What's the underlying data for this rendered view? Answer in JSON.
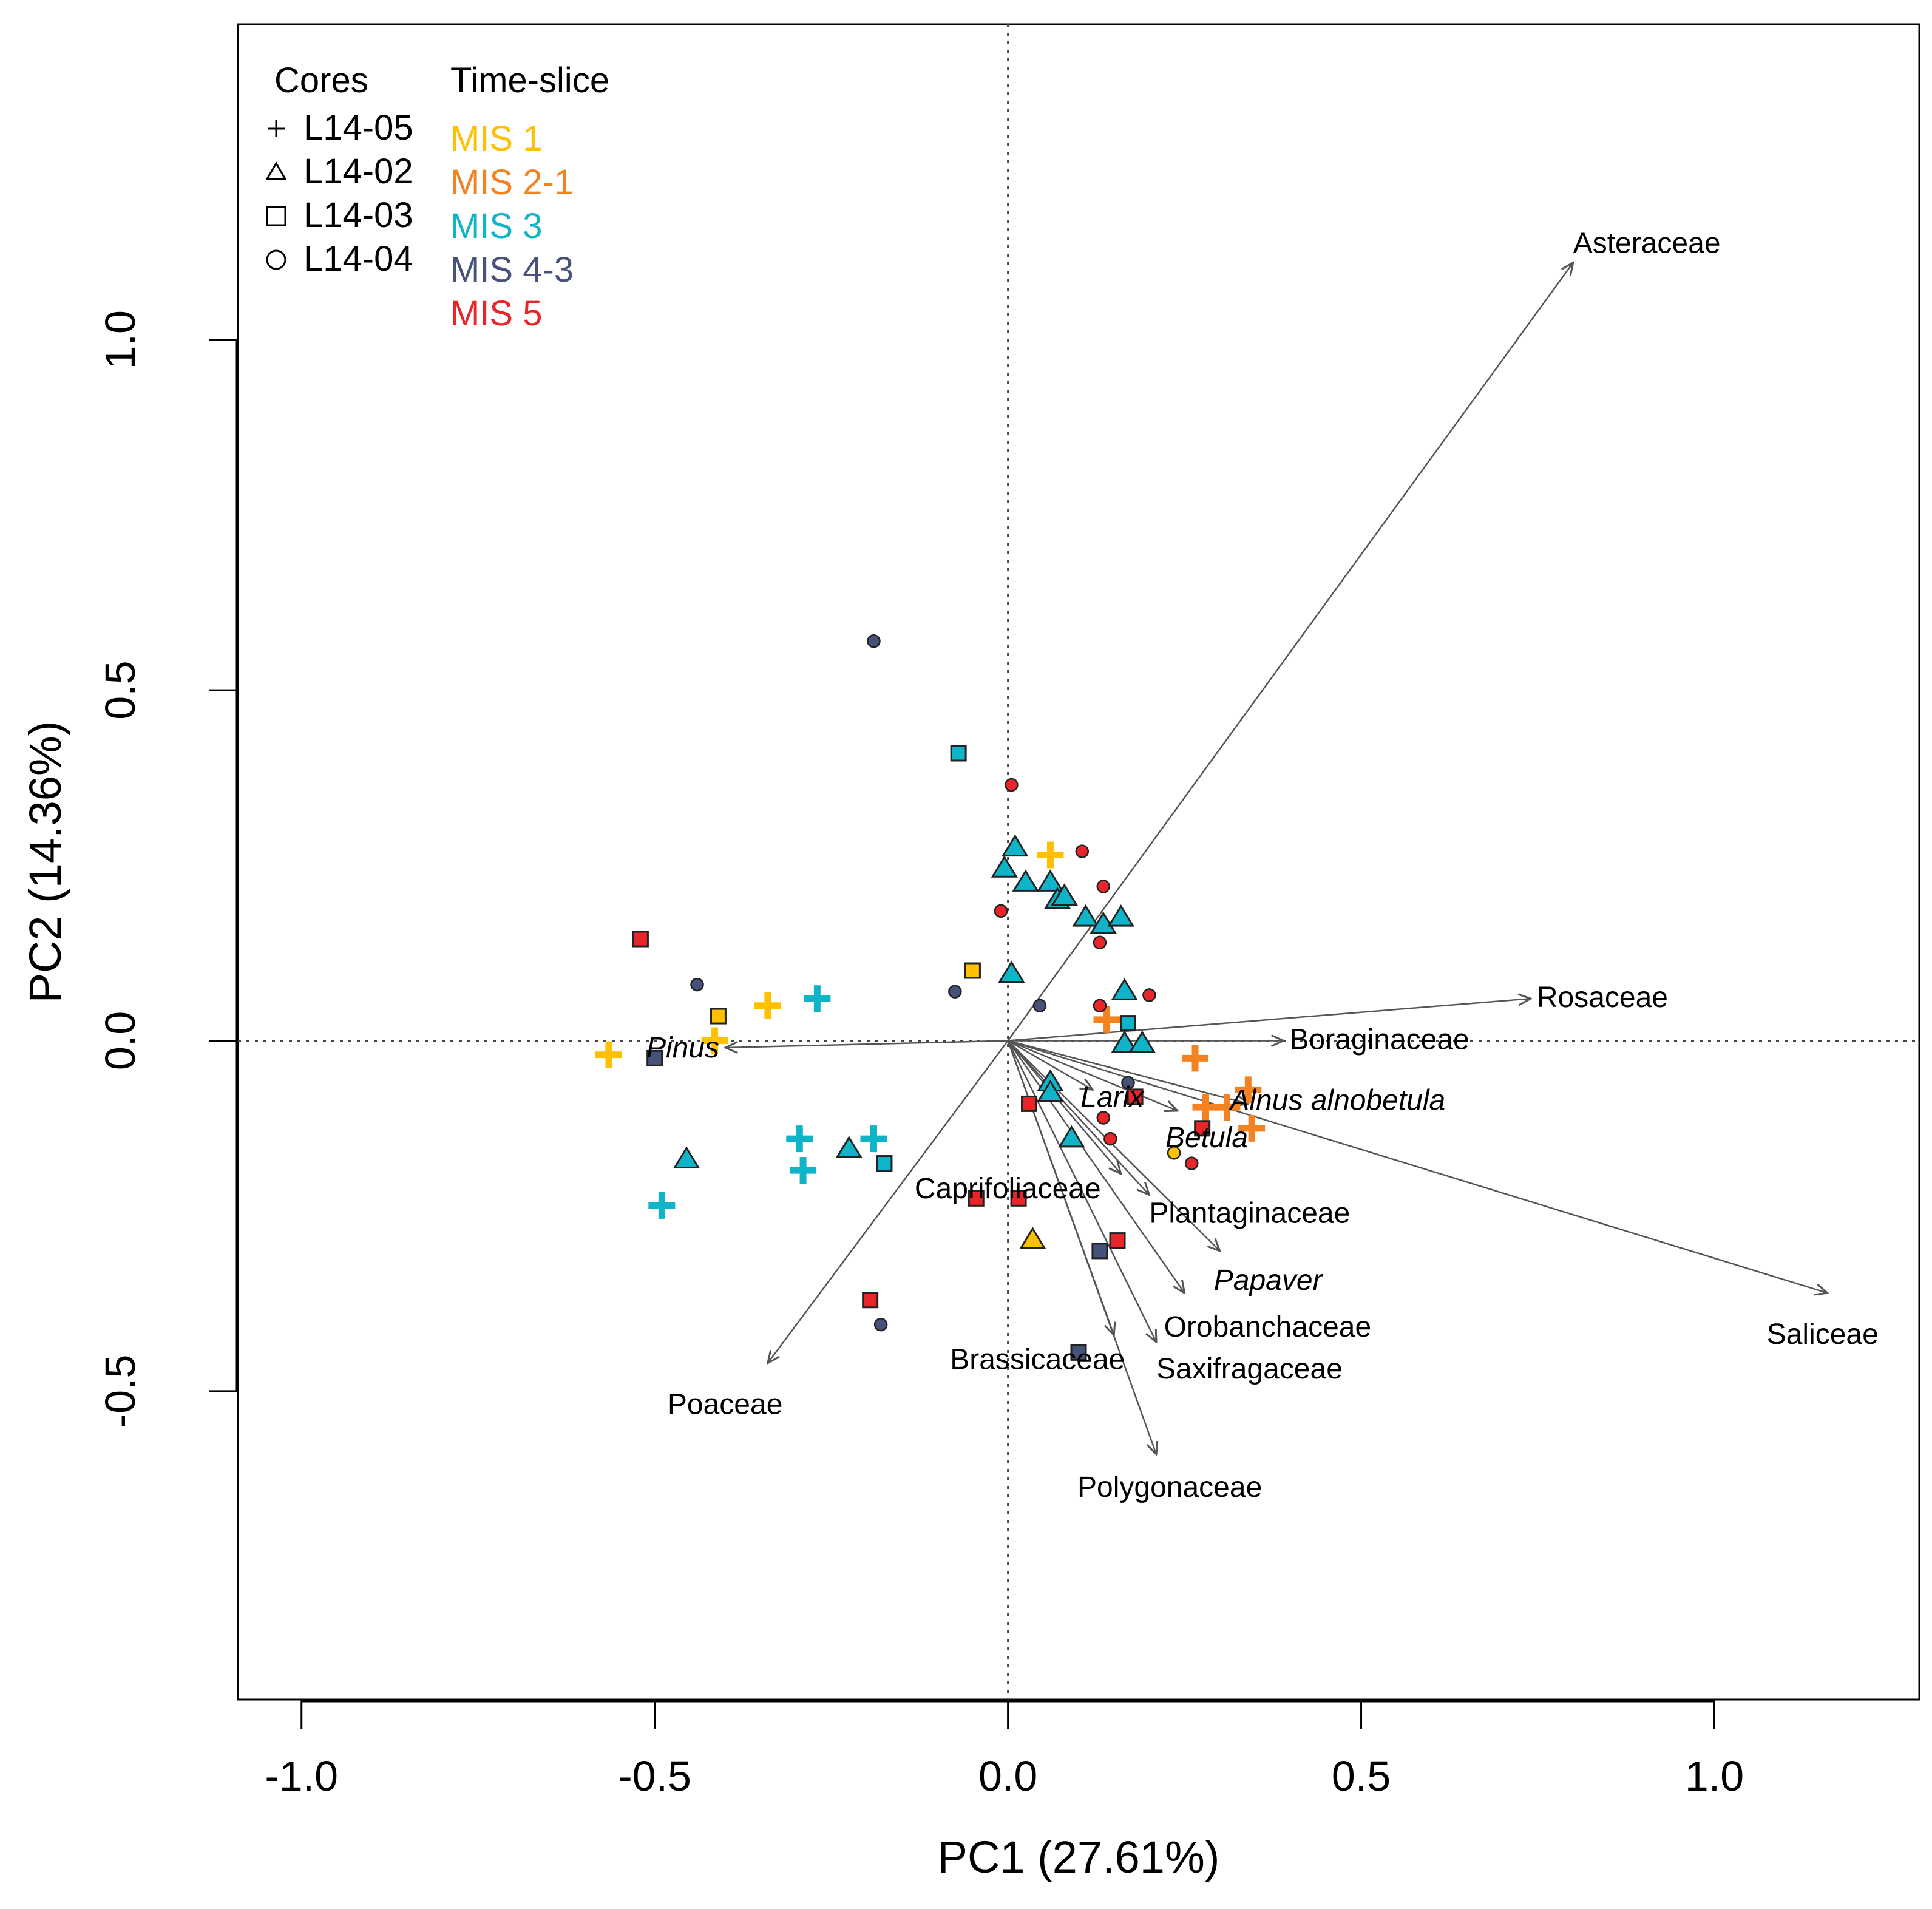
{
  "chart_data": {
    "type": "scatter",
    "subtype": "pca-biplot",
    "xlabel": "PC1 (27.61%)",
    "ylabel": "PC2 (14.36%)",
    "xlim": [
      -1.09,
      1.29
    ],
    "ylim": [
      -0.94,
      1.45
    ],
    "xticks": [
      -1.0,
      -0.5,
      0.0,
      0.5,
      1.0
    ],
    "yticks": [
      -0.5,
      0.0,
      0.5,
      1.0
    ],
    "xtick_labels": [
      "-1.0",
      "-0.5",
      "0.0",
      "0.5",
      "1.0"
    ],
    "ytick_labels": [
      "-0.5",
      "0.0",
      "0.5",
      "1.0"
    ],
    "reference_lines": {
      "x": 0,
      "y": 0,
      "style": "dotted"
    },
    "legend": {
      "placement": "top-left",
      "cores_title": "Cores",
      "timeslice_title": "Time-slice",
      "cores": [
        {
          "label": "L14-05",
          "shape": "plus"
        },
        {
          "label": "L14-02",
          "shape": "triangle"
        },
        {
          "label": "L14-03",
          "shape": "square"
        },
        {
          "label": "L14-04",
          "shape": "circle"
        }
      ],
      "time_slices": [
        {
          "label": "MIS 1",
          "color": "#FFC000"
        },
        {
          "label": "MIS 2-1",
          "color": "#F58220"
        },
        {
          "label": "MIS 3",
          "color": "#10B4C8"
        },
        {
          "label": "MIS 4-3",
          "color": "#46527A"
        },
        {
          "label": "MIS 5",
          "color": "#E8262A"
        }
      ]
    },
    "loadings": [
      {
        "name": "Asteraceae",
        "x": 0.8,
        "y": 1.11,
        "italic": false
      },
      {
        "name": "Rosaceae",
        "x": 0.74,
        "y": 0.06,
        "italic": false
      },
      {
        "name": "Boraginaceae",
        "x": 0.39,
        "y": 0.0,
        "italic": false
      },
      {
        "name": "Pinus",
        "x": -0.4,
        "y": -0.01,
        "italic": true
      },
      {
        "name": "Larix",
        "x": 0.12,
        "y": -0.07,
        "italic": true
      },
      {
        "name": "Betula",
        "x": 0.24,
        "y": -0.1,
        "italic": true
      },
      {
        "name": "Alnus alnobetula",
        "x": 0.34,
        "y": -0.09,
        "italic": true
      },
      {
        "name": "Saliceae",
        "x": 1.16,
        "y": -0.36,
        "italic": false
      },
      {
        "name": "Plantaginaceae",
        "x": 0.2,
        "y": -0.22,
        "italic": false
      },
      {
        "name": "Caprifoliaceae",
        "x": 0.16,
        "y": -0.19,
        "italic": false
      },
      {
        "name": "Papaver",
        "x": 0.3,
        "y": -0.3,
        "italic": true
      },
      {
        "name": "Orobanchaceae",
        "x": 0.25,
        "y": -0.36,
        "italic": false
      },
      {
        "name": "Brassicaceae",
        "x": 0.15,
        "y": -0.42,
        "italic": false
      },
      {
        "name": "Saxifragaceae",
        "x": 0.21,
        "y": -0.43,
        "italic": false
      },
      {
        "name": "Polygonaceae",
        "x": 0.21,
        "y": -0.59,
        "italic": false
      },
      {
        "name": "Poaceae",
        "x": -0.34,
        "y": -0.46,
        "italic": false
      }
    ],
    "points": [
      {
        "core": "L14-05",
        "slice": "MIS 1",
        "x": -0.565,
        "y": -0.02
      },
      {
        "core": "L14-05",
        "slice": "MIS 1",
        "x": -0.415,
        "y": 0.0
      },
      {
        "core": "L14-05",
        "slice": "MIS 1",
        "x": -0.34,
        "y": 0.05
      },
      {
        "core": "L14-05",
        "slice": "MIS 1",
        "x": 0.06,
        "y": 0.265
      },
      {
        "core": "L14-05",
        "slice": "MIS 3",
        "x": -0.27,
        "y": 0.06
      },
      {
        "core": "L14-05",
        "slice": "MIS 3",
        "x": -0.295,
        "y": -0.14
      },
      {
        "core": "L14-05",
        "slice": "MIS 3",
        "x": -0.29,
        "y": -0.185
      },
      {
        "core": "L14-05",
        "slice": "MIS 3",
        "x": -0.19,
        "y": -0.14
      },
      {
        "core": "L14-05",
        "slice": "MIS 3",
        "x": -0.49,
        "y": -0.235
      },
      {
        "core": "L14-05",
        "slice": "MIS 2-1",
        "x": 0.14,
        "y": 0.03
      },
      {
        "core": "L14-05",
        "slice": "MIS 2-1",
        "x": 0.265,
        "y": -0.025
      },
      {
        "core": "L14-05",
        "slice": "MIS 2-1",
        "x": 0.28,
        "y": -0.095
      },
      {
        "core": "L14-05",
        "slice": "MIS 2-1",
        "x": 0.31,
        "y": -0.095
      },
      {
        "core": "L14-05",
        "slice": "MIS 2-1",
        "x": 0.34,
        "y": -0.07
      },
      {
        "core": "L14-05",
        "slice": "MIS 2-1",
        "x": 0.345,
        "y": -0.125
      },
      {
        "core": "L14-02",
        "slice": "MIS 3",
        "x": -0.005,
        "y": 0.245
      },
      {
        "core": "L14-02",
        "slice": "MIS 3",
        "x": 0.01,
        "y": 0.275
      },
      {
        "core": "L14-02",
        "slice": "MIS 3",
        "x": 0.025,
        "y": 0.225
      },
      {
        "core": "L14-02",
        "slice": "MIS 3",
        "x": 0.06,
        "y": 0.225
      },
      {
        "core": "L14-02",
        "slice": "MIS 3",
        "x": 0.07,
        "y": 0.2
      },
      {
        "core": "L14-02",
        "slice": "MIS 3",
        "x": 0.08,
        "y": 0.205
      },
      {
        "core": "L14-02",
        "slice": "MIS 3",
        "x": 0.11,
        "y": 0.175
      },
      {
        "core": "L14-02",
        "slice": "MIS 3",
        "x": 0.135,
        "y": 0.165
      },
      {
        "core": "L14-02",
        "slice": "MIS 3",
        "x": 0.16,
        "y": 0.175
      },
      {
        "core": "L14-02",
        "slice": "MIS 3",
        "x": 0.005,
        "y": 0.095
      },
      {
        "core": "L14-02",
        "slice": "MIS 3",
        "x": 0.165,
        "y": 0.07
      },
      {
        "core": "L14-02",
        "slice": "MIS 3",
        "x": 0.165,
        "y": -0.005
      },
      {
        "core": "L14-02",
        "slice": "MIS 3",
        "x": 0.19,
        "y": -0.005
      },
      {
        "core": "L14-02",
        "slice": "MIS 3",
        "x": 0.06,
        "y": -0.06
      },
      {
        "core": "L14-02",
        "slice": "MIS 3",
        "x": 0.06,
        "y": -0.075
      },
      {
        "core": "L14-02",
        "slice": "MIS 3",
        "x": 0.09,
        "y": -0.14
      },
      {
        "core": "L14-02",
        "slice": "MIS 3",
        "x": -0.225,
        "y": -0.155
      },
      {
        "core": "L14-02",
        "slice": "MIS 3",
        "x": -0.455,
        "y": -0.17
      },
      {
        "core": "L14-02",
        "slice": "MIS 1",
        "x": 0.035,
        "y": -0.285
      },
      {
        "core": "L14-03",
        "slice": "MIS 5",
        "x": -0.52,
        "y": 0.145
      },
      {
        "core": "L14-03",
        "slice": "MIS 1",
        "x": -0.41,
        "y": 0.035
      },
      {
        "core": "L14-03",
        "slice": "MIS 4-3",
        "x": -0.5,
        "y": -0.025
      },
      {
        "core": "L14-03",
        "slice": "MIS 3",
        "x": -0.07,
        "y": 0.41
      },
      {
        "core": "L14-03",
        "slice": "MIS 1",
        "x": -0.05,
        "y": 0.1
      },
      {
        "core": "L14-03",
        "slice": "MIS 3",
        "x": 0.17,
        "y": 0.025
      },
      {
        "core": "L14-03",
        "slice": "MIS 3",
        "x": -0.175,
        "y": -0.175
      },
      {
        "core": "L14-03",
        "slice": "MIS 5",
        "x": -0.045,
        "y": -0.225
      },
      {
        "core": "L14-03",
        "slice": "MIS 5",
        "x": 0.015,
        "y": -0.225
      },
      {
        "core": "L14-03",
        "slice": "MIS 5",
        "x": 0.18,
        "y": -0.08
      },
      {
        "core": "L14-03",
        "slice": "MIS 5",
        "x": 0.275,
        "y": -0.125
      },
      {
        "core": "L14-03",
        "slice": "MIS 5",
        "x": 0.03,
        "y": -0.09
      },
      {
        "core": "L14-03",
        "slice": "MIS 5",
        "x": 0.155,
        "y": -0.285
      },
      {
        "core": "L14-03",
        "slice": "MIS 4-3",
        "x": 0.13,
        "y": -0.3
      },
      {
        "core": "L14-03",
        "slice": "MIS 5",
        "x": -0.195,
        "y": -0.37
      },
      {
        "core": "L14-03",
        "slice": "MIS 4-3",
        "x": 0.1,
        "y": -0.445
      },
      {
        "core": "L14-04",
        "slice": "MIS 4-3",
        "x": -0.19,
        "y": 0.57
      },
      {
        "core": "L14-04",
        "slice": "MIS 5",
        "x": 0.005,
        "y": 0.365
      },
      {
        "core": "L14-04",
        "slice": "MIS 5",
        "x": 0.105,
        "y": 0.27
      },
      {
        "core": "L14-04",
        "slice": "MIS 5",
        "x": 0.135,
        "y": 0.22
      },
      {
        "core": "L14-04",
        "slice": "MIS 5",
        "x": -0.01,
        "y": 0.185
      },
      {
        "core": "L14-04",
        "slice": "MIS 5",
        "x": 0.13,
        "y": 0.14
      },
      {
        "core": "L14-04",
        "slice": "MIS 4-3",
        "x": -0.44,
        "y": 0.08
      },
      {
        "core": "L14-04",
        "slice": "MIS 4-3",
        "x": -0.075,
        "y": 0.07
      },
      {
        "core": "L14-04",
        "slice": "MIS 4-3",
        "x": 0.045,
        "y": 0.05
      },
      {
        "core": "L14-04",
        "slice": "MIS 5",
        "x": 0.13,
        "y": 0.05
      },
      {
        "core": "L14-04",
        "slice": "MIS 5",
        "x": 0.2,
        "y": 0.065
      },
      {
        "core": "L14-04",
        "slice": "MIS 4-3",
        "x": 0.17,
        "y": -0.06
      },
      {
        "core": "L14-04",
        "slice": "MIS 5",
        "x": 0.135,
        "y": -0.11
      },
      {
        "core": "L14-04",
        "slice": "MIS 5",
        "x": 0.145,
        "y": -0.14
      },
      {
        "core": "L14-04",
        "slice": "MIS 1",
        "x": 0.235,
        "y": -0.16
      },
      {
        "core": "L14-04",
        "slice": "MIS 5",
        "x": 0.26,
        "y": -0.175
      },
      {
        "core": "L14-04",
        "slice": "MIS 4-3",
        "x": -0.18,
        "y": -0.405
      }
    ]
  }
}
